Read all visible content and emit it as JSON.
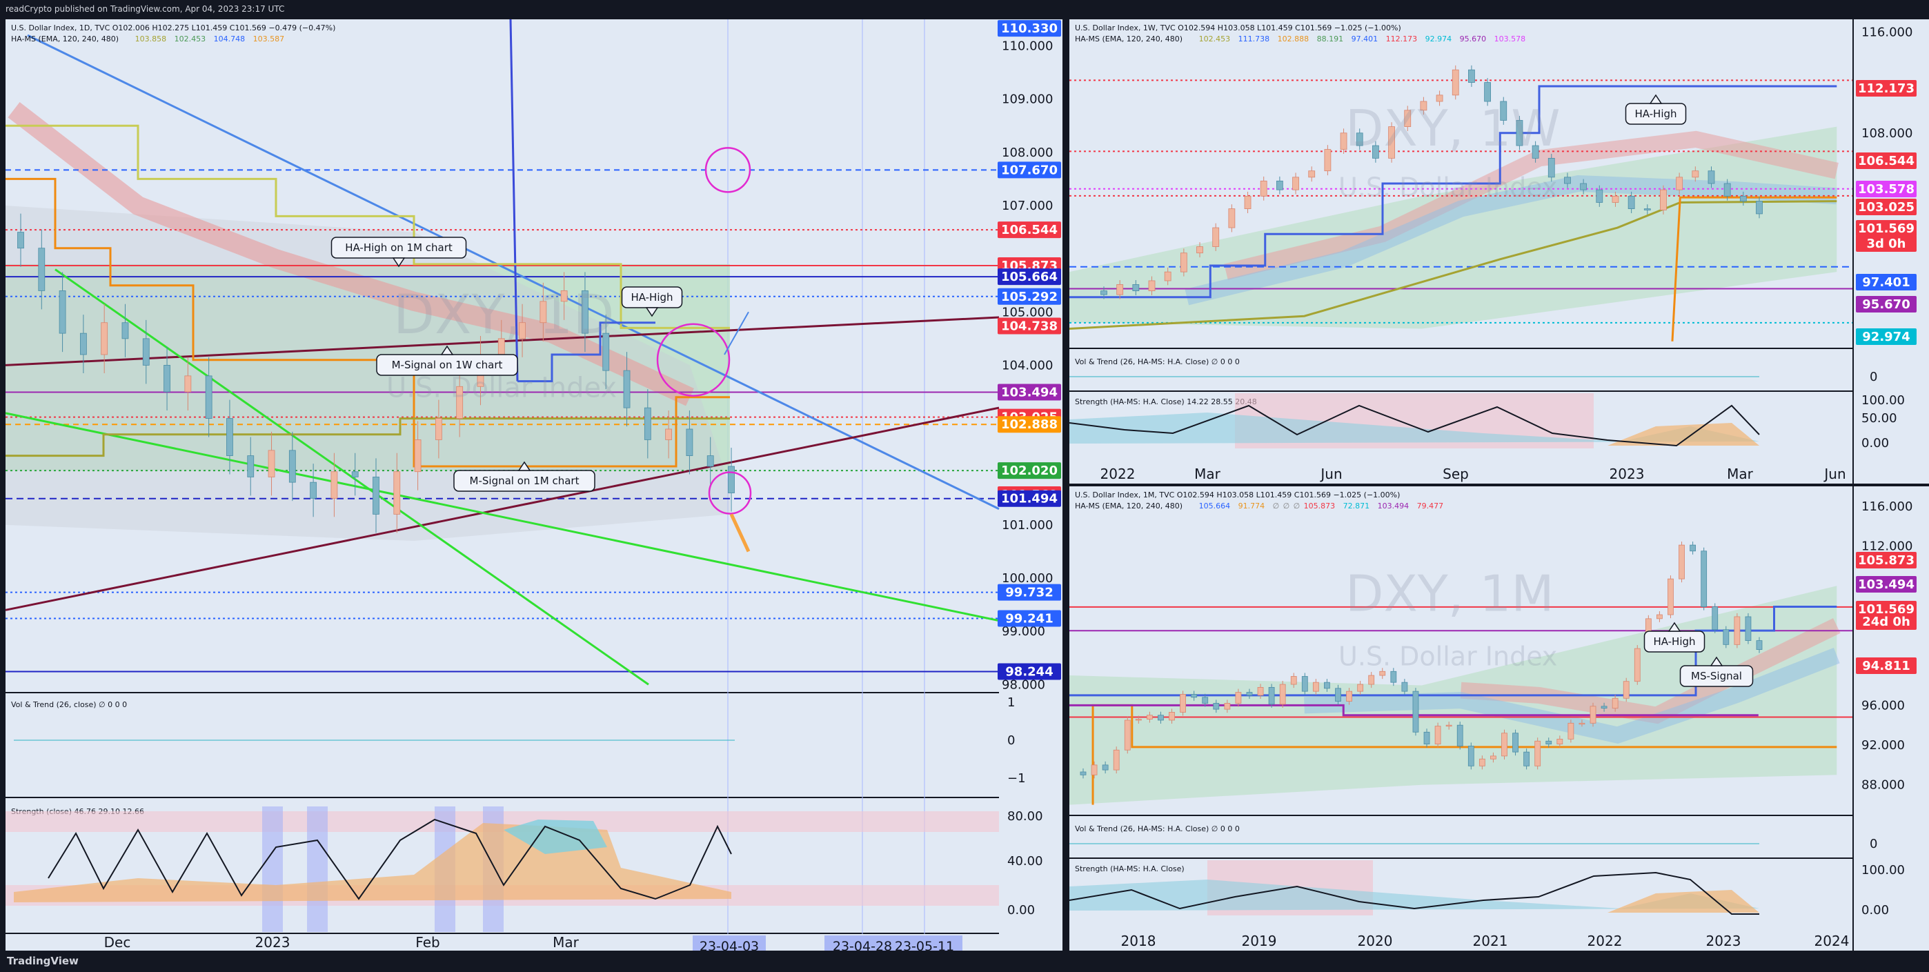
{
  "header": {
    "publisher": "readCrypto published on TradingView.com, Apr 04, 2023 23:17 UTC"
  },
  "footer": {
    "brand": "TradingView"
  },
  "colors": {
    "bg": "#131722",
    "pane": "#e1e9f4",
    "up": "#f3c3a6",
    "down": "#8db7c4",
    "accent_blue": "#2962ff"
  },
  "panels": {
    "daily": {
      "title": "U.S. Dollar Index, 1D, TVC",
      "ohlc": "O102.006  H102.275  L101.459  C101.569  −0.479 (−0.47%)",
      "ma_legend": "HA-MS (EMA, 120, 240, 480)",
      "ma_values": [
        "103.858",
        "102.453",
        "104.748",
        "103.587"
      ],
      "ma_value_colors": [
        "#a5a332",
        "#4c9a56",
        "#2962ff",
        "#e99520"
      ],
      "watermark_big": "DXY, 1D",
      "watermark_small": "U.S. Dollar Index",
      "vol_label": "Vol & Trend (26, close)",
      "vol_ticks": [
        "1",
        "0",
        "−1"
      ],
      "str_label": "Strength (close)",
      "str_values": [
        "46.76",
        "29.10",
        "12.66"
      ],
      "str_ticks": [
        "80.00",
        "40.00",
        "0.00"
      ],
      "date_labels": [
        "Dec",
        "2023",
        "Feb",
        "Mar"
      ],
      "date_badges": [
        "23-04-03",
        "23-04-28",
        "23-05-11"
      ],
      "annotations": [
        "HA-High on 1M chart",
        "HA-High",
        "M-Signal on 1W chart",
        "M-Signal on 1M chart"
      ],
      "axis_ticks": [
        "110.000",
        "109.000",
        "108.000",
        "107.000",
        "105.000",
        "104.000",
        "101.000",
        "100.000",
        "99.000",
        "98.000"
      ],
      "price_tags": [
        {
          "text": "110.330",
          "color": "#2962ff"
        },
        {
          "text": "107.670",
          "color": "#2962ff"
        },
        {
          "text": "106.544",
          "color": "#f23645"
        },
        {
          "text": "105.873",
          "color": "#f23645"
        },
        {
          "text": "105.664",
          "color": "#1f24c5"
        },
        {
          "text": "105.292",
          "color": "#2962ff"
        },
        {
          "text": "104.738",
          "color": "#f23645"
        },
        {
          "text": "103.494",
          "color": "#9c27b0"
        },
        {
          "text": "103.025",
          "color": "#f23645"
        },
        {
          "text": "102.888",
          "color": "#ff9800"
        },
        {
          "text": "102.020",
          "color": "#2aa63e"
        },
        {
          "text": "101.569",
          "color": "#f23645"
        },
        {
          "text": "101.494",
          "color": "#1f24c5"
        },
        {
          "text": "99.732",
          "color": "#2962ff"
        },
        {
          "text": "99.241",
          "color": "#2962ff"
        },
        {
          "text": "98.244",
          "color": "#1f24c5"
        }
      ]
    },
    "weekly": {
      "title": "U.S. Dollar Index, 1W, TVC",
      "ohlc": "O102.594  H103.058  L101.459  C101.569  −1.025 (−1.00%)",
      "ma_legend": "HA-MS (EMA, 120, 240, 480)",
      "ma_values": [
        "102.453",
        "111.738",
        "102.888",
        "88.191",
        "97.401",
        "112.173",
        "92.974",
        "95.670",
        "103.578"
      ],
      "ma_value_colors": [
        "#a5a332",
        "#2962ff",
        "#e99520",
        "#4c9a56",
        "#2962ff",
        "#f23645",
        "#00bcd4",
        "#9c27b0",
        "#e040fb"
      ],
      "watermark_big": "DXY, 1W",
      "watermark_small": "U.S. Dollar Index",
      "vol_label": "Vol & Trend (26, HA-MS: H.A. Close)",
      "vol_ticks": [
        "0"
      ],
      "str_label": "Strength (HA-MS: H.A. Close)",
      "str_values": [
        "14.22",
        "28.55",
        "20.48"
      ],
      "str_ticks": [
        "100.00",
        "50.00",
        "0.00"
      ],
      "date_labels": [
        "2022",
        "Mar",
        "Jun",
        "Sep",
        "2023",
        "Mar",
        "Jun"
      ],
      "annotations": [
        "HA-High"
      ],
      "axis_ticks": [
        "116.000",
        "108.000"
      ],
      "price_tags": [
        {
          "text": "112.173",
          "color": "#f23645"
        },
        {
          "text": "106.544",
          "color": "#f23645"
        },
        {
          "text": "103.578",
          "color": "#e040fb"
        },
        {
          "text": "103.025",
          "color": "#f23645"
        },
        {
          "text": "101.569",
          "color": "#f23645"
        },
        {
          "text": "3d 0h",
          "color": "#f23645"
        },
        {
          "text": "97.401",
          "color": "#2962ff"
        },
        {
          "text": "95.670",
          "color": "#9c27b0"
        },
        {
          "text": "92.974",
          "color": "#00bcd4"
        }
      ]
    },
    "monthly": {
      "title": "U.S. Dollar Index, 1M, TVC",
      "ohlc": "O102.594  H103.058  L101.459  C101.569  −1.025 (−1.00%)",
      "ma_legend": "HA-MS (EMA, 120, 240, 480)",
      "ma_values": [
        "105.664",
        "91.774",
        "∅",
        "∅",
        "∅",
        "105.873",
        "72.871",
        "103.494",
        "79.477"
      ],
      "ma_value_colors": [
        "#2962ff",
        "#e99520",
        "#808080",
        "#808080",
        "#808080",
        "#f23645",
        "#00bcd4",
        "#9c27b0",
        "#f23645"
      ],
      "watermark_big": "DXY, 1M",
      "watermark_small": "U.S. Dollar Index",
      "vol_label": "Vol & Trend (26, HA-MS: H.A. Close)",
      "vol_ticks": [
        "0"
      ],
      "str_label": "Strength (HA-MS: H.A. Close)",
      "str_values": [],
      "str_ticks": [
        "100.00",
        "0.00"
      ],
      "date_labels": [
        "2018",
        "2019",
        "2020",
        "2021",
        "2022",
        "2023",
        "2024"
      ],
      "annotations": [
        "HA-High",
        "MS-Signal"
      ],
      "axis_ticks": [
        "116.000",
        "112.000",
        "108.000",
        "96.000",
        "92.000",
        "88.000"
      ],
      "price_tags": [
        {
          "text": "105.873",
          "color": "#f23645"
        },
        {
          "text": "103.494",
          "color": "#9c27b0"
        },
        {
          "text": "101.569",
          "color": "#f23645"
        },
        {
          "text": "24d 0h",
          "color": "#f23645"
        },
        {
          "text": "94.811",
          "color": "#f23645"
        }
      ]
    }
  },
  "chart_data": [
    {
      "type": "candlestick",
      "title": "U.S. Dollar Index, 1D, TVC",
      "ylim": [
        97.9,
        110.5
      ],
      "x_categories": [
        "Dec",
        "2023",
        "Feb",
        "Mar",
        "23-04-03"
      ],
      "closes_approx": [
        106.2,
        105.4,
        104.6,
        104.2,
        104.8,
        104.5,
        104.0,
        103.5,
        103.8,
        103.0,
        102.3,
        101.9,
        102.4,
        101.8,
        101.5,
        102.0,
        101.9,
        101.2,
        102.0,
        102.6,
        103.0,
        103.6,
        104.2,
        104.5,
        104.8,
        105.2,
        105.4,
        104.6,
        103.9,
        103.2,
        102.6,
        102.8,
        102.3,
        102.1,
        101.6
      ],
      "last": {
        "open": 102.006,
        "high": 102.275,
        "low": 101.459,
        "close": 101.569
      },
      "levels": {
        "ha_high_1m": 105.873,
        "ha_high_1m_line": 105.664,
        "ha_high": 104.738,
        "m_signal_1w": 103.025,
        "m_signal_1m": 102.888,
        "support": 101.494,
        "low_line": 98.244,
        "target": 107.67
      }
    },
    {
      "type": "candlestick",
      "title": "U.S. Dollar Index, 1W, TVC",
      "ylim": [
        91,
        117
      ],
      "x_categories": [
        "2022",
        "Mar",
        "Jun",
        "Sep",
        "2023",
        "Mar",
        "Jun"
      ],
      "closes_approx": [
        95.2,
        96.0,
        95.5,
        96.3,
        97.0,
        98.5,
        99.0,
        100.5,
        102.0,
        103.0,
        104.2,
        103.5,
        104.5,
        105.0,
        106.7,
        108.0,
        107.0,
        106.0,
        108.5,
        109.8,
        110.5,
        111.0,
        113.0,
        112.0,
        110.5,
        109.0,
        107.0,
        106.0,
        104.5,
        104.0,
        103.5,
        102.5,
        103.0,
        102.0,
        101.9,
        103.5,
        104.5,
        105.0,
        104.0,
        103.0,
        102.6,
        101.6
      ],
      "last": {
        "open": 102.594,
        "high": 103.058,
        "low": 101.459,
        "close": 101.569
      },
      "levels": {
        "ha_high": 112.173,
        "level_106": 106.544,
        "ms": 103.578,
        "m_signal": 103.025,
        "blue": 97.401,
        "purple": 95.67,
        "cyan": 92.974
      }
    },
    {
      "type": "candlestick",
      "title": "U.S. Dollar Index, 1M, TVC",
      "ylim": [
        85,
        118
      ],
      "x_categories": [
        "2018",
        "2019",
        "2020",
        "2021",
        "2022",
        "2023",
        "2024"
      ],
      "closes_approx": [
        89.0,
        90.0,
        89.5,
        91.5,
        94.5,
        94.6,
        95.0,
        94.5,
        95.3,
        97.1,
        96.8,
        96.2,
        95.6,
        96.2,
        97.3,
        97.0,
        97.8,
        96.1,
        98.1,
        98.9,
        97.4,
        98.3,
        97.7,
        96.4,
        97.4,
        98.1,
        99.0,
        99.4,
        98.3,
        97.4,
        93.3,
        92.1,
        93.9,
        94.0,
        91.9,
        89.9,
        90.6,
        90.9,
        93.2,
        91.3,
        89.9,
        92.4,
        92.1,
        92.6,
        94.2,
        94.2,
        95.9,
        95.7,
        96.7,
        98.4,
        101.7,
        104.7,
        105.1,
        108.7,
        112.1,
        111.5,
        105.9,
        103.6,
        102.1,
        104.9,
        102.5,
        101.6
      ],
      "levels": {
        "ha_high": 105.873,
        "ms_signal": 103.494,
        "ha_low": 94.811
      }
    }
  ]
}
